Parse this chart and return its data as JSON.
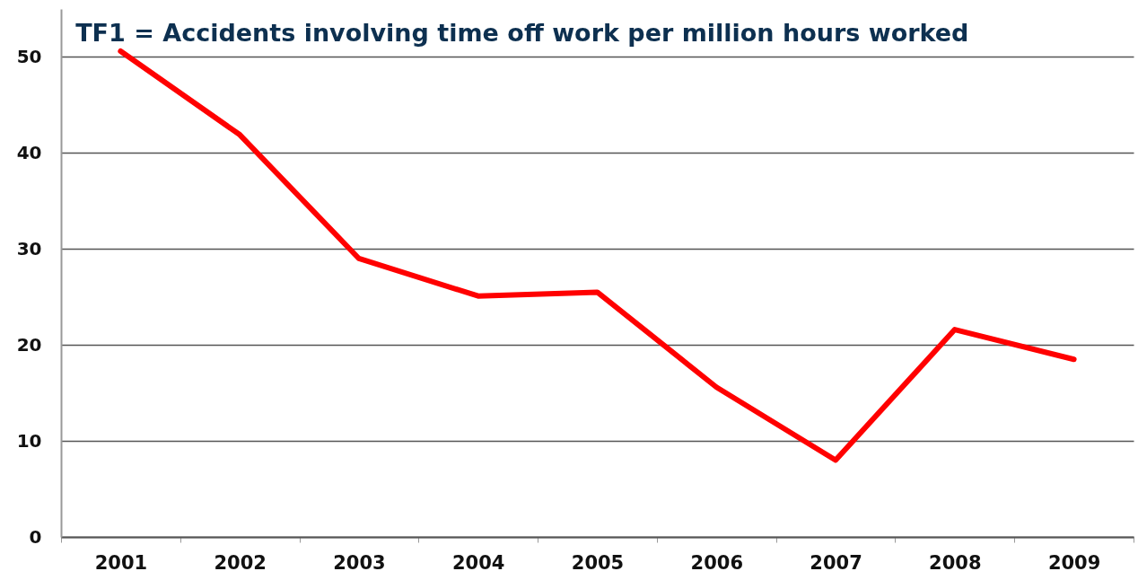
{
  "chart_data": {
    "type": "line",
    "title": "TF1 = Accidents involving time off work per million hours worked",
    "categories": [
      "2001",
      "2002",
      "2003",
      "2004",
      "2005",
      "2006",
      "2007",
      "2008",
      "2009"
    ],
    "series": [
      {
        "color": "#ff0000",
        "values": [
          50.6,
          41.9,
          29.0,
          25.1,
          25.5,
          15.6,
          8.0,
          21.6,
          18.5
        ]
      }
    ],
    "ylim": [
      0,
      55
    ],
    "yticks": [
      0,
      10,
      20,
      30,
      40,
      50
    ],
    "grid": "y"
  }
}
